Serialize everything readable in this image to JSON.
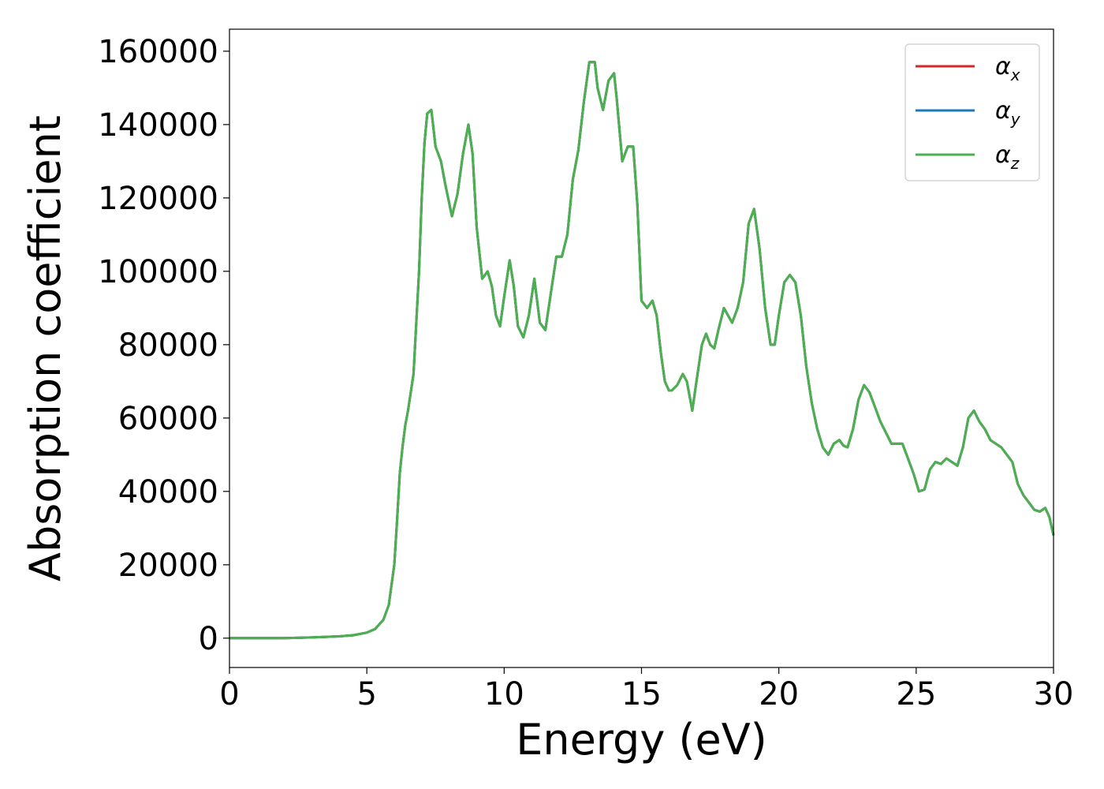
{
  "chart_data": {
    "type": "line",
    "title": "",
    "xlabel": "Energy (eV)",
    "ylabel": "Absorption coefficient",
    "xlim": [
      0,
      30
    ],
    "ylim": [
      -8000,
      166000
    ],
    "xticks": [
      0,
      5,
      10,
      15,
      20,
      25,
      30
    ],
    "yticks": [
      0,
      20000,
      40000,
      60000,
      80000,
      100000,
      120000,
      140000,
      160000
    ],
    "grid": false,
    "legend_position": "top-right",
    "legend": [
      {
        "symbol": "α",
        "subscript": "x",
        "color": "#d62728"
      },
      {
        "symbol": "α",
        "subscript": "y",
        "color": "#1f77b4"
      },
      {
        "symbol": "α",
        "subscript": "z",
        "color": "#4caf50"
      }
    ],
    "x": [
      0,
      1,
      2,
      3,
      4,
      4.5,
      5,
      5.3,
      5.6,
      5.8,
      6.0,
      6.1,
      6.2,
      6.3,
      6.4,
      6.5,
      6.7,
      6.9,
      7.0,
      7.1,
      7.2,
      7.35,
      7.5,
      7.7,
      7.85,
      8.1,
      8.3,
      8.5,
      8.7,
      8.85,
      9.0,
      9.2,
      9.4,
      9.55,
      9.7,
      9.85,
      10.0,
      10.2,
      10.35,
      10.5,
      10.7,
      10.9,
      11.1,
      11.3,
      11.5,
      11.7,
      11.9,
      12.1,
      12.3,
      12.5,
      12.7,
      12.9,
      13.1,
      13.3,
      13.4,
      13.6,
      13.8,
      14.0,
      14.1,
      14.3,
      14.5,
      14.7,
      14.85,
      15.0,
      15.2,
      15.4,
      15.55,
      15.7,
      15.85,
      16.0,
      16.1,
      16.3,
      16.5,
      16.65,
      16.85,
      17.0,
      17.2,
      17.35,
      17.5,
      17.65,
      17.8,
      18.0,
      18.3,
      18.5,
      18.7,
      18.9,
      19.1,
      19.3,
      19.5,
      19.7,
      19.85,
      20.0,
      20.2,
      20.4,
      20.6,
      20.8,
      21.0,
      21.2,
      21.4,
      21.6,
      21.8,
      22.0,
      22.2,
      22.35,
      22.5,
      22.7,
      22.9,
      23.1,
      23.3,
      23.5,
      23.7,
      23.9,
      24.1,
      24.3,
      24.5,
      24.7,
      24.9,
      25.1,
      25.3,
      25.5,
      25.7,
      25.9,
      26.1,
      26.3,
      26.5,
      26.7,
      26.9,
      27.1,
      27.3,
      27.5,
      27.7,
      27.9,
      28.1,
      28.3,
      28.5,
      28.7,
      28.9,
      29.1,
      29.3,
      29.5,
      29.7,
      29.85,
      30.0
    ],
    "series": [
      {
        "name": "α_x",
        "color": "#d62728",
        "values": [
          0,
          0,
          0,
          200,
          500,
          800,
          1500,
          2500,
          5000,
          9000,
          20000,
          32000,
          45000,
          52000,
          58000,
          62000,
          72000,
          100000,
          120000,
          135000,
          143000,
          144000,
          134000,
          130000,
          124000,
          115000,
          121000,
          132000,
          140000,
          132000,
          112000,
          98000,
          100000,
          96000,
          88000,
          85000,
          93000,
          103000,
          96000,
          85000,
          82000,
          88000,
          98000,
          86000,
          84000,
          94000,
          104000,
          104000,
          110000,
          125000,
          133000,
          146000,
          157000,
          157000,
          150000,
          144000,
          152000,
          154000,
          147000,
          130000,
          134000,
          134000,
          118000,
          92000,
          90000,
          92000,
          88000,
          78000,
          70000,
          67500,
          67500,
          69000,
          72000,
          70000,
          62000,
          70000,
          80000,
          83000,
          80000,
          79000,
          84000,
          90000,
          86000,
          90000,
          97000,
          113000,
          117000,
          106000,
          90000,
          80000,
          80000,
          88000,
          97000,
          99000,
          97000,
          88000,
          74000,
          64000,
          57000,
          52000,
          50000,
          53000,
          54000,
          52500,
          52000,
          57000,
          65000,
          69000,
          67000,
          63000,
          59000,
          56000,
          53000,
          53000,
          53000,
          49000,
          45000,
          40000,
          40500,
          46000,
          48000,
          47500,
          49000,
          48000,
          47000,
          52000,
          60000,
          62000,
          59000,
          57000,
          54000,
          53000,
          52000,
          50000,
          48000,
          42000,
          39000,
          37000,
          35000,
          34500,
          35500,
          33000,
          28000
        ]
      },
      {
        "name": "α_y",
        "color": "#1f77b4",
        "values": [
          0,
          0,
          0,
          200,
          500,
          800,
          1500,
          2500,
          5000,
          9000,
          20000,
          32000,
          45000,
          52000,
          58000,
          62000,
          72000,
          100000,
          120000,
          135000,
          143000,
          144000,
          134000,
          130000,
          124000,
          115000,
          121000,
          132000,
          140000,
          132000,
          112000,
          98000,
          100000,
          96000,
          88000,
          85000,
          93000,
          103000,
          96000,
          85000,
          82000,
          88000,
          98000,
          86000,
          84000,
          94000,
          104000,
          104000,
          110000,
          125000,
          133000,
          146000,
          157000,
          157000,
          150000,
          144000,
          152000,
          154000,
          147000,
          130000,
          134000,
          134000,
          118000,
          92000,
          90000,
          92000,
          88000,
          78000,
          70000,
          67500,
          67500,
          69000,
          72000,
          70000,
          62000,
          70000,
          80000,
          83000,
          80000,
          79000,
          84000,
          90000,
          86000,
          90000,
          97000,
          113000,
          117000,
          106000,
          90000,
          80000,
          80000,
          88000,
          97000,
          99000,
          97000,
          88000,
          74000,
          64000,
          57000,
          52000,
          50000,
          53000,
          54000,
          52500,
          52000,
          57000,
          65000,
          69000,
          67000,
          63000,
          59000,
          56000,
          53000,
          53000,
          53000,
          49000,
          45000,
          40000,
          40500,
          46000,
          48000,
          47500,
          49000,
          48000,
          47000,
          52000,
          60000,
          62000,
          59000,
          57000,
          54000,
          53000,
          52000,
          50000,
          48000,
          42000,
          39000,
          37000,
          35000,
          34500,
          35500,
          33000,
          28000
        ]
      },
      {
        "name": "α_z",
        "color": "#4caf50",
        "values": [
          0,
          0,
          0,
          200,
          500,
          800,
          1500,
          2500,
          5000,
          9000,
          20000,
          32000,
          45000,
          52000,
          58000,
          62000,
          72000,
          100000,
          120000,
          135000,
          143000,
          144000,
          134000,
          130000,
          124000,
          115000,
          121000,
          132000,
          140000,
          132000,
          112000,
          98000,
          100000,
          96000,
          88000,
          85000,
          93000,
          103000,
          96000,
          85000,
          82000,
          88000,
          98000,
          86000,
          84000,
          94000,
          104000,
          104000,
          110000,
          125000,
          133000,
          146000,
          157000,
          157000,
          150000,
          144000,
          152000,
          154000,
          147000,
          130000,
          134000,
          134000,
          118000,
          92000,
          90000,
          92000,
          88000,
          78000,
          70000,
          67500,
          67500,
          69000,
          72000,
          70000,
          62000,
          70000,
          80000,
          83000,
          80000,
          79000,
          84000,
          90000,
          86000,
          90000,
          97000,
          113000,
          117000,
          106000,
          90000,
          80000,
          80000,
          88000,
          97000,
          99000,
          97000,
          88000,
          74000,
          64000,
          57000,
          52000,
          50000,
          53000,
          54000,
          52500,
          52000,
          57000,
          65000,
          69000,
          67000,
          63000,
          59000,
          56000,
          53000,
          53000,
          53000,
          49000,
          45000,
          40000,
          40500,
          46000,
          48000,
          47500,
          49000,
          48000,
          47000,
          52000,
          60000,
          62000,
          59000,
          57000,
          54000,
          53000,
          52000,
          50000,
          48000,
          42000,
          39000,
          37000,
          35000,
          34500,
          35500,
          33000,
          28000
        ]
      }
    ]
  }
}
